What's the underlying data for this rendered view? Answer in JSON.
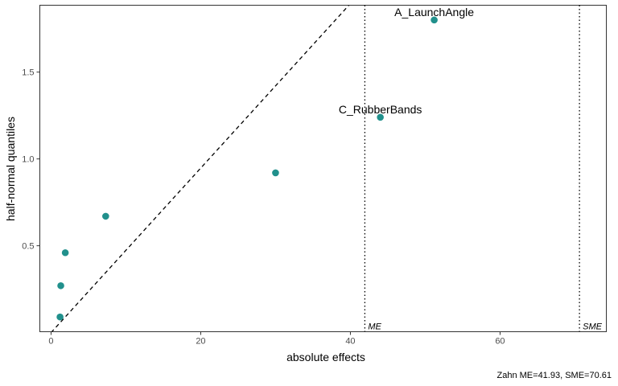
{
  "chart_data": {
    "type": "scatter",
    "title": "",
    "xlabel": "absolute effects",
    "ylabel": "half-normal quantiles",
    "xlim": [
      -1.5,
      74.2
    ],
    "ylim": [
      0.005,
      1.885
    ],
    "xticks": [
      0,
      20,
      40,
      60
    ],
    "yticks": [
      0.5,
      1.0,
      1.5
    ],
    "ytick_labels": [
      "0.5",
      "1.0",
      "1.5"
    ],
    "grid": false,
    "point_color": "#21908c",
    "points": [
      {
        "x": 1.2,
        "y": 0.09,
        "label": ""
      },
      {
        "x": 1.3,
        "y": 0.27,
        "label": ""
      },
      {
        "x": 1.9,
        "y": 0.46,
        "label": ""
      },
      {
        "x": 7.3,
        "y": 0.67,
        "label": ""
      },
      {
        "x": 30.0,
        "y": 0.92,
        "label": ""
      },
      {
        "x": 44.0,
        "y": 1.24,
        "label": "C_RubberBands"
      },
      {
        "x": 51.2,
        "y": 1.8,
        "label": "A_LaunchAngle"
      }
    ],
    "reference_line": {
      "style": "dashed",
      "from": [
        0,
        0
      ],
      "to": [
        39.8,
        1.885
      ]
    },
    "vlines": [
      {
        "x": 41.93,
        "label": "ME",
        "style": "dotted"
      },
      {
        "x": 70.61,
        "label": "SME",
        "style": "dotted"
      }
    ],
    "caption": "Zahn ME=41.93, SME=70.61"
  }
}
